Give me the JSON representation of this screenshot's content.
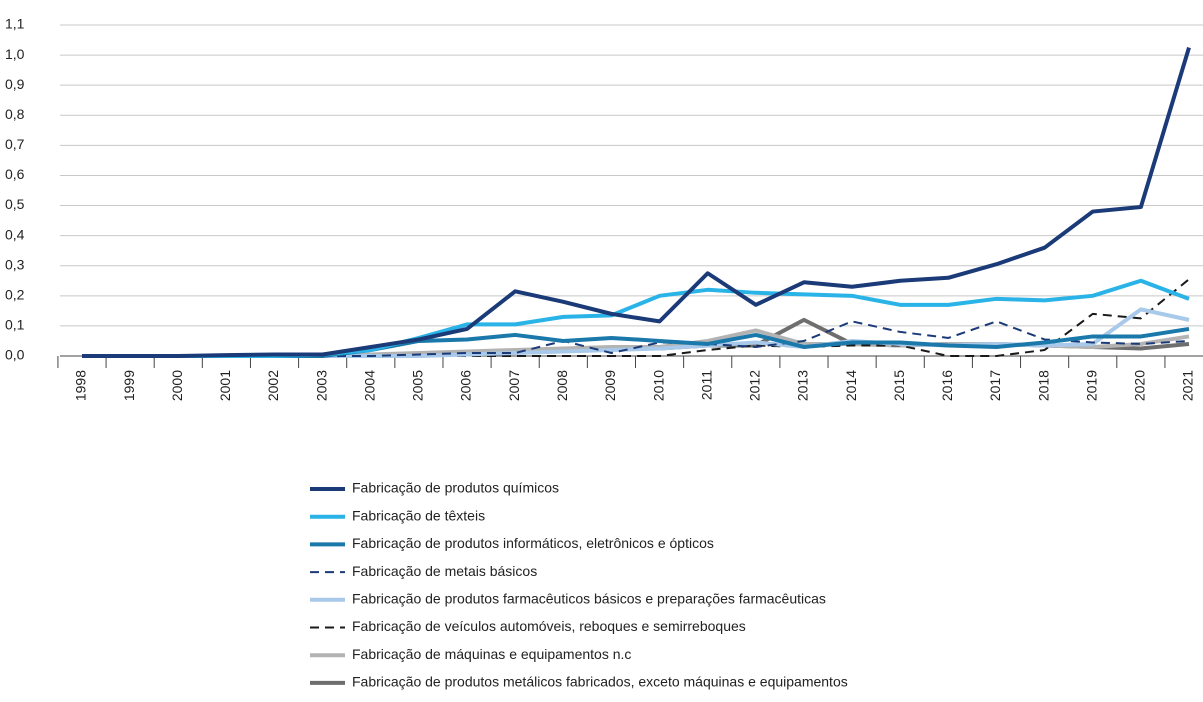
{
  "chart_data": {
    "type": "line",
    "categories": [
      "1998",
      "1999",
      "2000",
      "2001",
      "2002",
      "2003",
      "2004",
      "2005",
      "2006",
      "2007",
      "2008",
      "2009",
      "2010",
      "2011",
      "2012",
      "2013",
      "2014",
      "2015",
      "2016",
      "2017",
      "2018",
      "2019",
      "2020",
      "2021"
    ],
    "ylim": [
      0,
      1.1
    ],
    "yticks": [
      {
        "value": 0,
        "label": "0,0"
      },
      {
        "value": 0.1,
        "label": "0,1"
      },
      {
        "value": 0.2,
        "label": "0,2"
      },
      {
        "value": 0.3,
        "label": "0,3"
      },
      {
        "value": 0.4,
        "label": "0,4"
      },
      {
        "value": 0.5,
        "label": "0,5"
      },
      {
        "value": 0.6,
        "label": "0,6"
      },
      {
        "value": 0.7,
        "label": "0,7"
      },
      {
        "value": 0.8,
        "label": "0,8"
      },
      {
        "value": 0.9,
        "label": "0,9"
      },
      {
        "value": 1.0,
        "label": "1,0"
      },
      {
        "value": 1.1,
        "label": "1,1"
      }
    ],
    "grid": true,
    "series": [
      {
        "name": "Fabricação de produtos químicos",
        "color": "#1b3a78",
        "style": "solid",
        "values": [
          0,
          0,
          0,
          0.003,
          0.005,
          0.005,
          0.03,
          0.055,
          0.09,
          0.215,
          0.18,
          0.14,
          0.115,
          0.275,
          0.17,
          0.245,
          0.23,
          0.25,
          0.26,
          0.305,
          0.36,
          0.48,
          0.495,
          1.025
        ]
      },
      {
        "name": "Fabricação de têxteis",
        "color": "#2ab3e6",
        "style": "solid",
        "values": [
          0,
          0,
          0,
          0,
          0,
          0.005,
          0.02,
          0.06,
          0.105,
          0.105,
          0.13,
          0.135,
          0.2,
          0.22,
          0.21,
          0.205,
          0.2,
          0.17,
          0.17,
          0.19,
          0.185,
          0.2,
          0.25,
          0.19
        ]
      },
      {
        "name": "Fabricação de produtos informáticos, eletrônicos e ópticos",
        "color": "#1a78aa",
        "style": "solid",
        "values": [
          0,
          0,
          0,
          0,
          0,
          0,
          0.02,
          0.05,
          0.055,
          0.07,
          0.05,
          0.06,
          0.05,
          0.04,
          0.07,
          0.03,
          0.045,
          0.045,
          0.035,
          0.03,
          0.045,
          0.065,
          0.065,
          0.09
        ]
      },
      {
        "name": "Fabricação de metais básicos",
        "color": "#1b3a78",
        "style": "dashed",
        "values": [
          0,
          0,
          0,
          0,
          0,
          0,
          0,
          0.005,
          0.01,
          0.01,
          0.05,
          0.01,
          0.045,
          0.04,
          0.03,
          0.05,
          0.115,
          0.08,
          0.06,
          0.115,
          0.055,
          0.045,
          0.04,
          0.05
        ]
      },
      {
        "name": "Fabricação de produtos farmacêuticos básicos e preparações farmacêuticas",
        "color": "#a8c9e9",
        "style": "solid",
        "values": [
          0,
          0,
          0,
          0,
          0,
          0,
          0,
          0,
          0.005,
          0.01,
          0.015,
          0.02,
          0.025,
          0.035,
          0.045,
          0.03,
          0.05,
          0.04,
          0.035,
          0.04,
          0.035,
          0.04,
          0.155,
          0.12
        ]
      },
      {
        "name": "Fabricação de veículos automóveis, reboques e semirreboques",
        "color": "#1a1a1a",
        "style": "dashed",
        "values": [
          0,
          0,
          0,
          0,
          0,
          0,
          0,
          0,
          0,
          0,
          0,
          0,
          0,
          0.02,
          0.035,
          0.03,
          0.035,
          0.035,
          0,
          0,
          0.02,
          0.14,
          0.125,
          0.255
        ]
      },
      {
        "name": "Fabricação de máquinas e equipamentos n.c",
        "color": "#b3b3b3",
        "style": "solid",
        "values": [
          0,
          0,
          0,
          0,
          0,
          0,
          0.005,
          0.01,
          0.015,
          0.02,
          0.025,
          0.03,
          0.03,
          0.05,
          0.085,
          0.04,
          0.04,
          0.035,
          0.04,
          0.04,
          0.035,
          0.03,
          0.04,
          0.065
        ]
      },
      {
        "name": "Fabricação de produtos metálicos fabricados, exceto máquinas e equipamentos",
        "color": "#6e6e6e",
        "style": "solid",
        "values": [
          0,
          0,
          0,
          0,
          0,
          0,
          0,
          0.005,
          0.01,
          0.015,
          0.02,
          0.025,
          0.025,
          0.035,
          0.035,
          0.12,
          0.04,
          0.035,
          0.04,
          0.04,
          0.035,
          0.03,
          0.025,
          0.04
        ]
      }
    ]
  }
}
